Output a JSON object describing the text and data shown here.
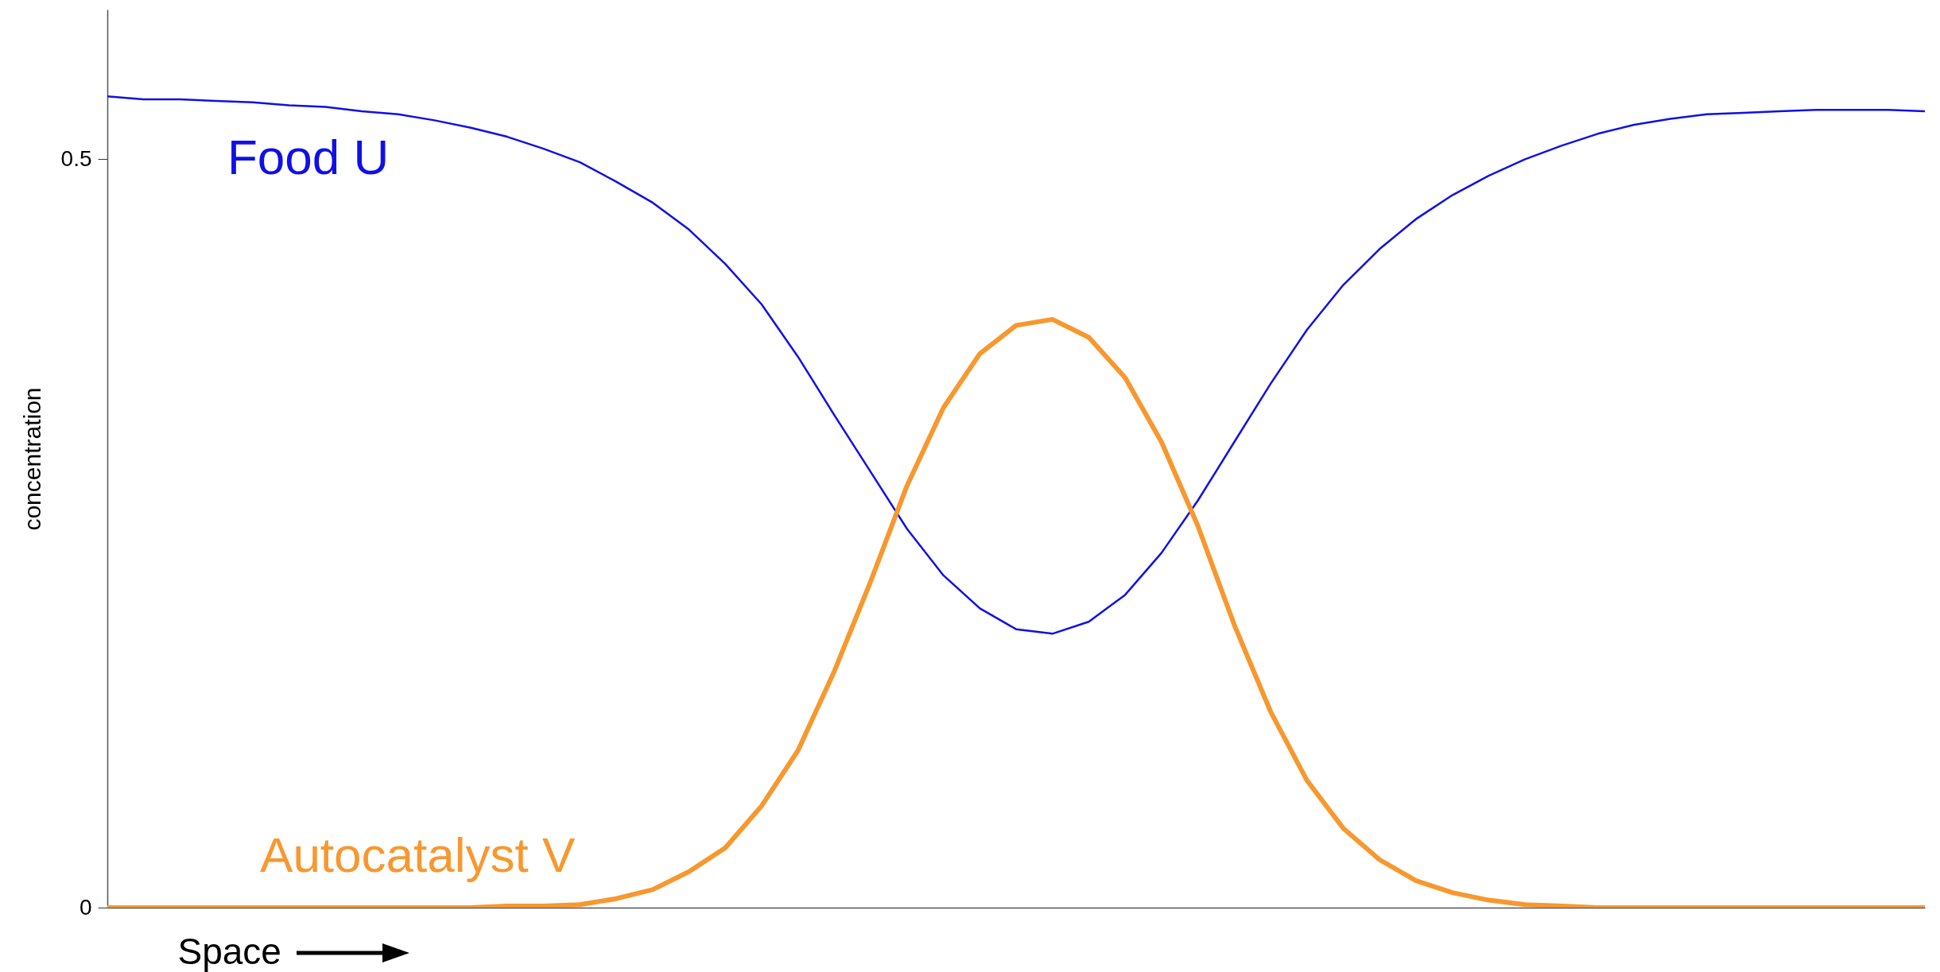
{
  "chart_data": {
    "type": "line",
    "xlabel": "Space",
    "ylabel": "concentration",
    "categories": [
      null,
      null,
      null,
      null,
      null,
      null,
      null,
      null,
      null,
      null,
      null,
      null,
      null,
      null,
      null,
      null,
      null,
      null,
      null,
      null,
      null,
      null,
      null,
      null,
      null,
      null,
      null,
      null,
      null,
      null,
      null,
      null,
      null,
      null,
      null,
      null,
      null,
      null,
      null,
      null,
      null,
      null,
      null,
      null,
      null,
      null,
      null,
      null,
      null,
      null,
      null
    ],
    "series": [
      {
        "name": "Food U",
        "color": "#1010e6",
        "values": [
          0.542,
          0.54,
          0.54,
          0.539,
          0.538,
          0.536,
          0.535,
          0.532,
          0.53,
          0.526,
          0.521,
          0.515,
          0.507,
          0.498,
          0.485,
          0.471,
          0.453,
          0.43,
          0.403,
          0.368,
          0.329,
          0.291,
          0.253,
          0.222,
          0.2,
          0.186,
          0.183,
          0.191,
          0.209,
          0.237,
          0.272,
          0.311,
          0.35,
          0.386,
          0.416,
          0.44,
          0.46,
          0.476,
          0.489,
          0.5,
          0.509,
          0.517,
          0.523,
          0.527,
          0.53,
          0.531,
          0.532,
          0.533,
          0.533,
          0.533,
          0.532
        ]
      },
      {
        "name": "Autocatalyst V",
        "color": "#f7982f",
        "values": [
          0,
          0,
          0,
          0,
          0,
          0,
          0,
          0,
          0,
          0,
          0,
          0.001,
          0.001,
          0.002,
          0.006,
          0.012,
          0.024,
          0.04,
          0.068,
          0.105,
          0.158,
          0.218,
          0.282,
          0.334,
          0.37,
          0.389,
          0.393,
          0.381,
          0.354,
          0.311,
          0.255,
          0.189,
          0.131,
          0.085,
          0.053,
          0.032,
          0.018,
          0.01,
          0.005,
          0.002,
          0.001,
          0,
          0,
          0,
          0,
          0,
          0,
          0,
          0,
          0,
          0
        ]
      }
    ],
    "ylim": [
      0,
      0.6
    ],
    "yticks": [
      0,
      0.5
    ],
    "tick_labels": "y",
    "grid": false
  }
}
